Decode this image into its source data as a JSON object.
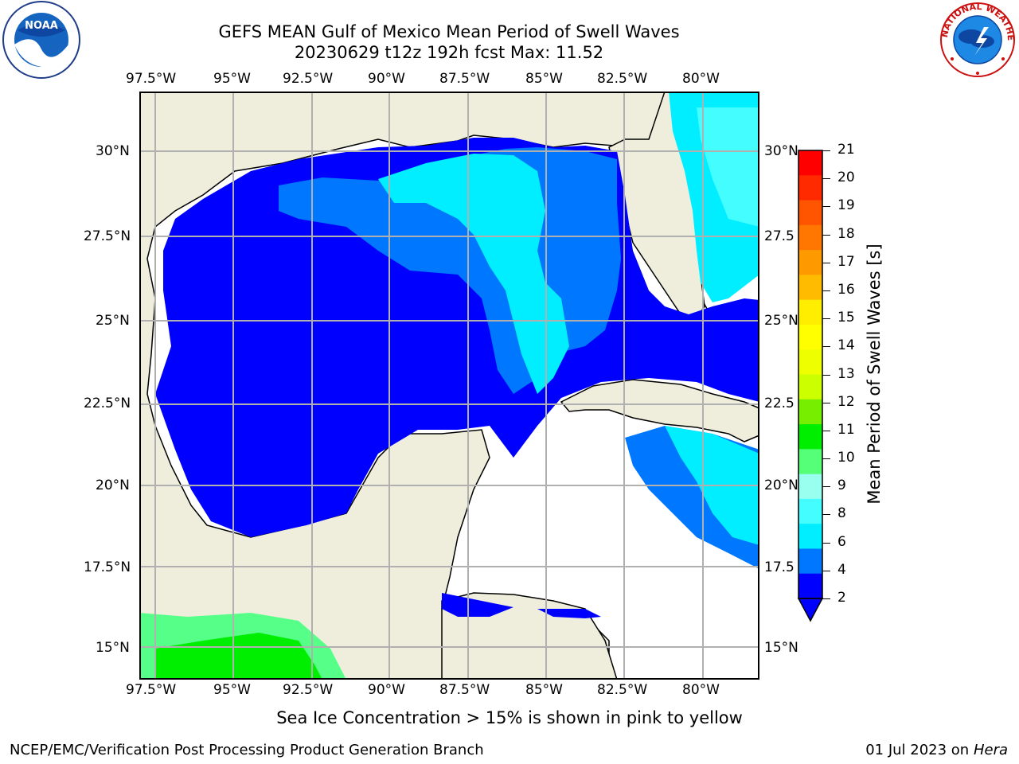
{
  "header": {
    "title_line1": "GEFS MEAN Gulf of Mexico Mean Period of Swell Waves",
    "title_line2": "20230629 t12z 192h fcst   Max: 11.52"
  },
  "logos": {
    "left": "NOAA",
    "right": "NATIONAL WEATHER SERVICE"
  },
  "map": {
    "lon_labels": [
      "97.5°W",
      "95°W",
      "92.5°W",
      "90°W",
      "87.5°W",
      "85°W",
      "82.5°W",
      "80°W"
    ],
    "lat_labels_left": [
      "30°N",
      "27.5°N",
      "25°N",
      "22.5°N",
      "20°N",
      "17.5°N",
      "15°N"
    ],
    "lat_labels_right": [
      "30°N",
      "27.5",
      "25°N",
      "22.5",
      "20°N",
      "17.5",
      "15°N"
    ],
    "colors": {
      "land": "#efeedc",
      "ocean_2_4": "#0000ff",
      "ocean_4_6": "#0077ff",
      "ocean_6_8": "#00eeff",
      "ocean_8_9": "#44fdff",
      "ocean_9_10": "#55ff88",
      "ocean_10_11": "#00ee00"
    }
  },
  "colorbar": {
    "label": "Mean Period of Swell Waves [s]",
    "ticks": [
      "21",
      "20",
      "19",
      "18",
      "17",
      "16",
      "15",
      "14",
      "13",
      "12",
      "11",
      "10",
      "9",
      "8",
      "6",
      "4",
      "2"
    ],
    "colors": [
      "#ff0000",
      "#ff2a00",
      "#ff5500",
      "#ff7700",
      "#ff9900",
      "#ffbb00",
      "#ffee00",
      "#ffff00",
      "#eeff00",
      "#ccff00",
      "#77ee00",
      "#00ee00",
      "#55ff77",
      "#99ffee",
      "#44fdff",
      "#00eeff",
      "#0077ff",
      "#0000ff"
    ]
  },
  "footer": {
    "ice_note": "Sea Ice Concentration > 15% is shown in pink to yellow",
    "credit": "NCEP/EMC/Verification Post Processing Product Generation Branch",
    "date_prefix": "01 Jul 2023 on ",
    "machine": "Hera"
  }
}
